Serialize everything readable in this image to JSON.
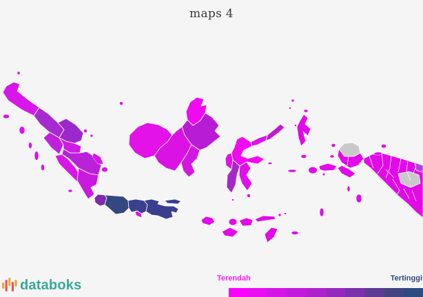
{
  "title": "maps 4",
  "branding": {
    "logo_text": "databoks",
    "logo_color": "#38a79b",
    "icon_bar_colors": [
      "#f2a33c",
      "#e05a4e",
      "#f2a33c",
      "#e05a4e",
      "#f2a33c"
    ]
  },
  "legend": {
    "low_label": "Terendah",
    "high_label": "Tertinggi",
    "low_label_color": "#f21ef2",
    "high_label_color": "#2d4a7c",
    "gradient_steps": [
      "#fb02fe",
      "#e80df3",
      "#d514e8",
      "#c21bdb",
      "#ae22ce",
      "#9629bd",
      "#7b31a9",
      "#5e3a92",
      "#44437f",
      "#2e4b80"
    ]
  },
  "map": {
    "background": "#f5f5f5",
    "border_color": "#ffffff",
    "no_data_color": "#c9c9c9",
    "regions": {
      "aceh": "#d916ea",
      "north_sumatra": "#a62ad2",
      "riau": "#9a28cc",
      "west_sumatra": "#c020dc",
      "jambi": "#cf1ce4",
      "south_sumatra": "#b922d6",
      "bengkulu": "#d816e8",
      "lampung": "#cb1ae0",
      "bangka_belitung": "#d914e6",
      "riau_islands": "#e012e8",
      "banten": "#7e2caa",
      "west_java": "#334880",
      "central_java": "#3c3f8c",
      "yogyakarta": "#e010e8",
      "east_java": "#3b3e8e",
      "bali": "#e20ae8",
      "west_nusa_tenggara": "#e20ae8",
      "east_nusa_tenggara": "#e20ae8",
      "west_kalimantan": "#e212e8",
      "central_kalimantan": "#da12e4",
      "south_kalimantan": "#d316e2",
      "east_kalimantan": "#b81cd4",
      "north_kalimantan": "#f00af2",
      "west_sulawesi": "#e010e8",
      "central_sulawesi": "#f00cf0",
      "south_sulawesi": "#a428c8",
      "southeast_sulawesi": "#e010e8",
      "gorontalo": "#d911e6",
      "north_sulawesi": "#c01ad6",
      "north_maluku": "#e20ae8",
      "maluku": "#e20ae8",
      "west_papua": "#e20ae8",
      "papua": "#e20ae8",
      "papua_accent": "#b03fd4",
      "small_islands": "#e012e8",
      "no_data": "#c9c9c9"
    }
  }
}
